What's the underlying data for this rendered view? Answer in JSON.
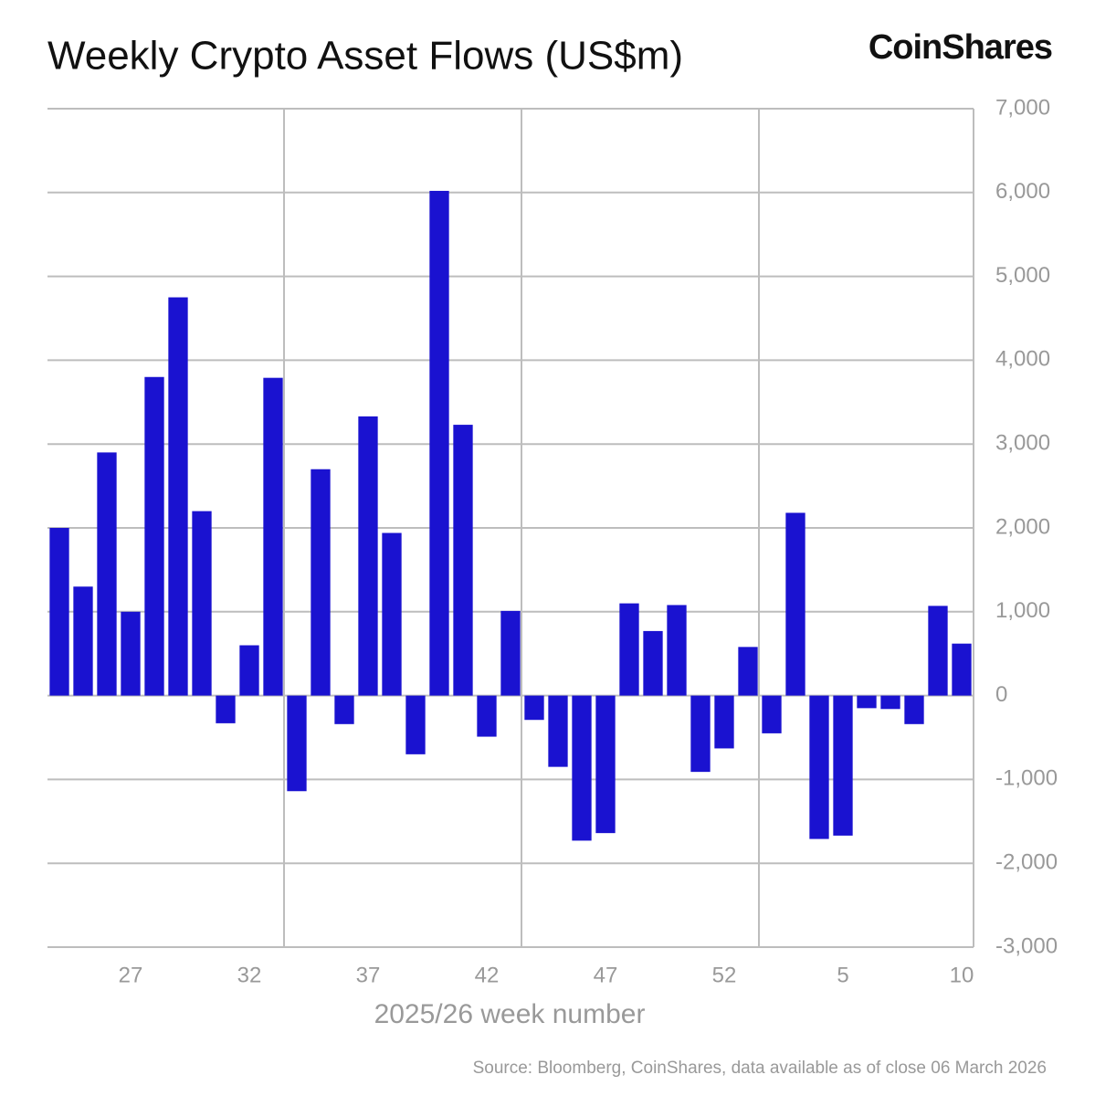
{
  "chart_data": {
    "type": "bar",
    "title": "Weekly Crypto Asset Flows (US$m)",
    "brand": "CoinShares",
    "xlabel": "2025/26 week number",
    "source": "Source: Bloomberg, CoinShares, data available as of close 06 March 2026",
    "categories": [
      null,
      null,
      null,
      "27",
      null,
      null,
      null,
      null,
      "32",
      null,
      null,
      null,
      null,
      "37",
      null,
      null,
      null,
      null,
      "42",
      null,
      null,
      null,
      null,
      "47",
      null,
      null,
      null,
      null,
      "52",
      null,
      null,
      null,
      null,
      "5",
      null,
      null,
      null,
      null,
      "10"
    ],
    "values": [
      2000,
      1300,
      2900,
      1000,
      3800,
      4750,
      2200,
      -330,
      600,
      3790,
      -1140,
      2700,
      -340,
      3330,
      1940,
      -700,
      6020,
      3230,
      -490,
      1010,
      -290,
      -850,
      -1730,
      -1640,
      1100,
      770,
      1080,
      -910,
      -630,
      580,
      -450,
      2180,
      -1710,
      -1670,
      -150,
      -160,
      -340,
      1070,
      620
    ],
    "color": "#1a12d0",
    "ylim": [
      -3000,
      7000
    ],
    "yticks": [
      {
        "value": -3000,
        "label": "-3,000"
      },
      {
        "value": -2000,
        "label": "-2,000"
      },
      {
        "value": -1000,
        "label": "-1,000"
      },
      0,
      {
        "value": 1000,
        "label": "1,000"
      },
      {
        "value": 2000,
        "label": "2,000"
      },
      {
        "value": 3000,
        "label": "3,000"
      },
      {
        "value": 4000,
        "label": "4,000"
      },
      {
        "value": 5000,
        "label": "5,000"
      },
      {
        "value": 6000,
        "label": "6,000"
      },
      {
        "value": 7000,
        "label": "7,000"
      }
    ],
    "grid": true
  }
}
